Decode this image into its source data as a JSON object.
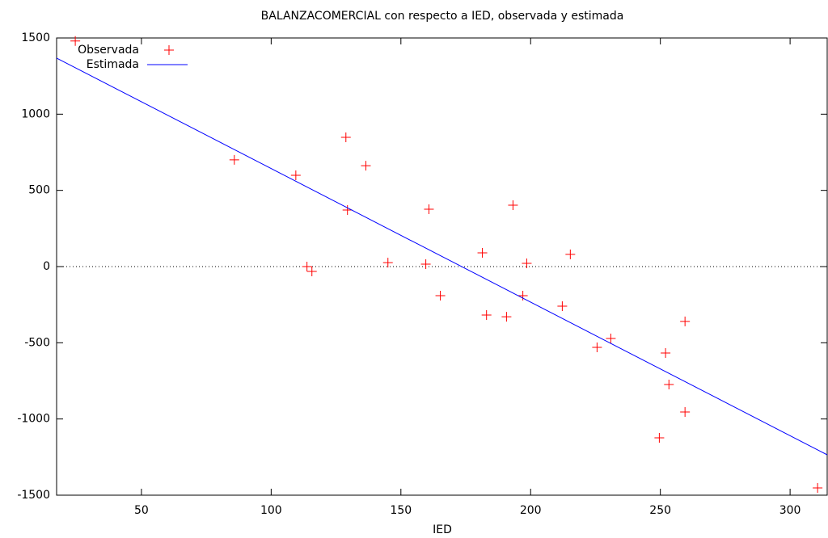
{
  "chart_data": {
    "type": "scatter",
    "title": "BALANZACOMERCIAL con respecto a IED, observada y estimada",
    "x_label": "IED",
    "xlim": [
      17.3,
      314.3
    ],
    "ylim": [
      -1500,
      1500
    ],
    "xticks": [
      50,
      100,
      150,
      200,
      250,
      300
    ],
    "yticks": [
      -1500,
      -1000,
      -500,
      0,
      500,
      1000,
      1500
    ],
    "zero_line": true,
    "legend": "top-left",
    "series": [
      {
        "name": "Observada",
        "color": "#ff0000",
        "mode": "points",
        "x": [
          24.5,
          85.8,
          109.5,
          128.8,
          129.4,
          136.5,
          113.8,
          115.7,
          145,
          159.6,
          160.8,
          165.2,
          181.4,
          183,
          190.7,
          193.2,
          197,
          198.5,
          212.2,
          215.3,
          225.6,
          230.9,
          252,
          253.3,
          259.5,
          259.5,
          249.6,
          310.6
        ],
        "values": [
          1480,
          700,
          599,
          848,
          371,
          662,
          0,
          -32,
          26,
          16,
          376,
          -191,
          90,
          -318,
          -329,
          403,
          -191,
          21,
          -260,
          80,
          -530,
          -472,
          -567,
          -774,
          -360,
          -954,
          -1124,
          -1452
        ]
      },
      {
        "name": "Estimada",
        "color": "#0000ff",
        "mode": "line",
        "x": [
          17.3,
          314.3
        ],
        "values": [
          1368,
          -1235
        ]
      }
    ]
  }
}
